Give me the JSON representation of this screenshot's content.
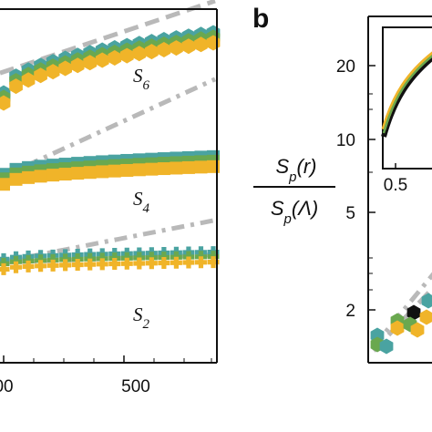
{
  "colors": {
    "teal": "#4aa3a1",
    "green": "#6aa84f",
    "yellow": "#f0b429",
    "reference_line": "#b9b9b9",
    "black": "#111111"
  },
  "chart_data": [
    {
      "type": "scatter",
      "panel": "a",
      "x_ticks": [
        "00",
        "500"
      ],
      "series_labels": [
        "S6",
        "S4",
        "S2"
      ],
      "series": [
        {
          "order": 6,
          "marker": "hexagon",
          "colors": [
            "teal",
            "green",
            "yellow"
          ],
          "level_start": 0.75,
          "level_end": 0.92
        },
        {
          "order": 4,
          "marker": "square",
          "colors": [
            "teal",
            "green",
            "yellow"
          ],
          "level_start": 0.52,
          "level_end": 0.57
        },
        {
          "order": 2,
          "marker": "plus",
          "colors": [
            "teal",
            "green",
            "yellow"
          ],
          "level_start": 0.28,
          "level_end": 0.3
        }
      ]
    },
    {
      "type": "line",
      "panel": "b",
      "panel_letter": "b",
      "ylabel_numerator": "S_p(r)",
      "ylabel_denominator": "S_p(Λ)",
      "y_scale": "log",
      "y_ticks": [
        "20",
        "10",
        "5",
        "2"
      ],
      "inset": {
        "x_ticks": [
          "0.5"
        ]
      }
    }
  ]
}
